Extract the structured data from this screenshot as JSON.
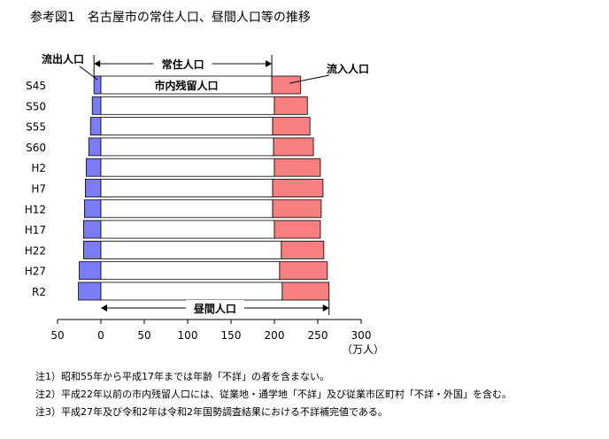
{
  "figure_title": "参考図1　名古屋市の常住人口、昼間人口等の推移",
  "chart_data": {
    "type": "bar",
    "orientation": "horizontal",
    "stacked": true,
    "categories": [
      "S45",
      "S50",
      "S55",
      "S60",
      "H2",
      "H7",
      "H12",
      "H17",
      "H22",
      "H27",
      "R2"
    ],
    "series": [
      {
        "name": "流出人口",
        "direction": "negative",
        "color": "#7b7bf5",
        "values": [
          8,
          10,
          12,
          14,
          17,
          18,
          19,
          20,
          20,
          25,
          26
        ]
      },
      {
        "name": "市内残留人口",
        "color": "#ffffff",
        "values": [
          197,
          200,
          198,
          199,
          200,
          198,
          198,
          200,
          208,
          206,
          209
        ]
      },
      {
        "name": "流入人口",
        "color": "#f87f7f",
        "values": [
          33,
          38,
          43,
          46,
          53,
          58,
          56,
          53,
          49,
          55,
          54
        ]
      }
    ],
    "annotations": {
      "outflow": "流出人口",
      "resident": "常住人口",
      "inflow": "流入人口",
      "remaining": "市内残留人口",
      "daytime": "昼間人口"
    },
    "x_ticks": [
      "50",
      "0",
      "50",
      "100",
      "150",
      "200",
      "250",
      "300"
    ],
    "x_unit": "（万人）",
    "xlim": [
      -50,
      300
    ],
    "grid": false
  },
  "notes": [
    "注1）昭和55年から平成17年までは年齢「不詳」の者を含まない。",
    "注2）平成22年以前の市内残留人口には、従業地・通学地「不詳」及び従業市区町村「不詳・外国」を含む。",
    "注3）平成27年及び令和2年は令和2年国勢調査結果における不詳補完値である。"
  ]
}
